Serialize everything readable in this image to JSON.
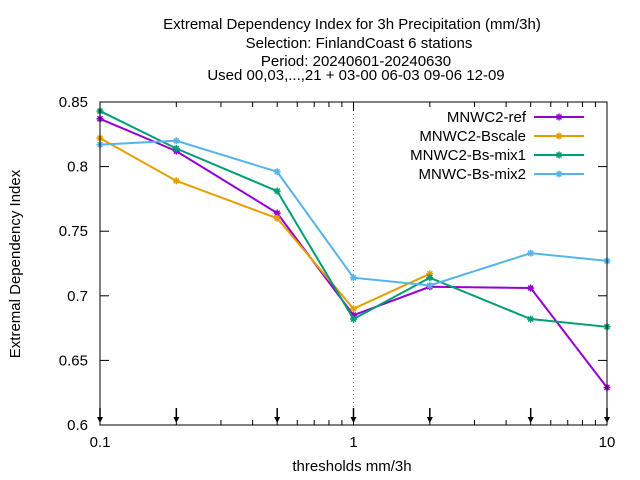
{
  "chart_data": {
    "type": "line",
    "title_lines": [
      "Extremal Dependency Index  for 3h Precipitation (mm/3h)",
      "Selection: FinlandCoast      6 stations",
      "Period: 20240601-20240630",
      "Used 00,03,...,21 + 03-00 06-03 09-06 12-09"
    ],
    "xlabel": "thresholds mm/3h",
    "ylabel": "Extremal Dependency Index",
    "x_scale": "log",
    "xlim": [
      0.1,
      10
    ],
    "ylim": [
      0.6,
      0.85
    ],
    "x_ticks": [
      0.1,
      1,
      10
    ],
    "x_tick_labels": [
      "0.1",
      "1",
      "10"
    ],
    "y_ticks": [
      0.6,
      0.65,
      0.7,
      0.75,
      0.8,
      0.85
    ],
    "y_tick_labels": [
      "0.6",
      "0.65",
      "0.7",
      "0.75",
      "0.8",
      "0.85"
    ],
    "grid": "dotted vertical line at x=1",
    "legend_position": "top-right",
    "threshold_markers": [
      0.1,
      0.2,
      0.5,
      1,
      2,
      5,
      10
    ],
    "x": [
      0.1,
      0.2,
      0.5,
      1,
      2,
      5,
      10
    ],
    "series": [
      {
        "name": "MNWC2-ref",
        "color": "#9400d3",
        "values": [
          0.837,
          0.812,
          0.764,
          0.685,
          0.707,
          0.706,
          0.629
        ]
      },
      {
        "name": "MNWC2-Bscale",
        "color": "#e69f00",
        "values": [
          0.822,
          0.789,
          0.76,
          0.69,
          0.717,
          null,
          null
        ]
      },
      {
        "name": "MNWC2-Bs-mix1",
        "color": "#009e73",
        "values": [
          0.843,
          0.814,
          0.781,
          0.682,
          0.714,
          0.682,
          0.676
        ]
      },
      {
        "name": "MNWC-Bs-mix2",
        "color": "#56b4e9",
        "values": [
          0.817,
          0.82,
          0.796,
          0.714,
          0.708,
          0.733,
          0.727
        ]
      }
    ]
  }
}
